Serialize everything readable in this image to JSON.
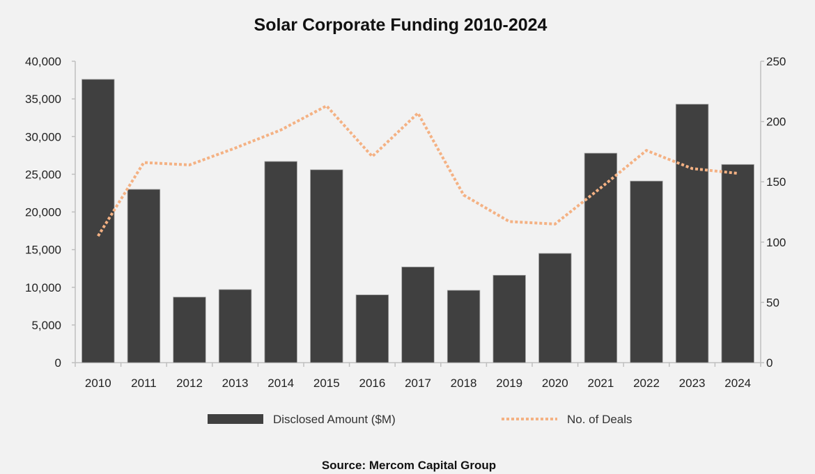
{
  "chart_data": {
    "type": "bar",
    "title": "Solar Corporate Funding 2010-2024",
    "source": "Source: Mercom Capital Group",
    "categories": [
      "2010",
      "2011",
      "2012",
      "2013",
      "2014",
      "2015",
      "2016",
      "2017",
      "2018",
      "2019",
      "2020",
      "2021",
      "2022",
      "2023",
      "2024"
    ],
    "series": [
      {
        "name": "Disclosed Amount ($M)",
        "type": "bar",
        "axis": "left",
        "color": "#404040",
        "values": [
          37600,
          23000,
          8700,
          9700,
          26700,
          25600,
          9000,
          12700,
          9600,
          11600,
          14500,
          27800,
          24100,
          34300,
          26300
        ]
      },
      {
        "name": "No. of Deals",
        "type": "line",
        "style": "dotted",
        "axis": "right",
        "color": "#f4b183",
        "values": [
          105,
          166,
          164,
          178,
          193,
          213,
          171,
          207,
          139,
          117,
          115,
          145,
          176,
          161,
          157
        ]
      }
    ],
    "y_left": {
      "range": [
        0,
        40000
      ],
      "ticks": [
        "0",
        "5,000",
        "10,000",
        "15,000",
        "20,000",
        "25,000",
        "30,000",
        "35,000",
        "40,000"
      ],
      "tick_values": [
        0,
        5000,
        10000,
        15000,
        20000,
        25000,
        30000,
        35000,
        40000
      ]
    },
    "y_right": {
      "range": [
        0,
        250
      ],
      "ticks": [
        "0",
        "50",
        "100",
        "150",
        "200",
        "250"
      ],
      "tick_values": [
        0,
        50,
        100,
        150,
        200,
        250
      ]
    },
    "grid": false,
    "legend": "bottom",
    "background": "#f2f2f2"
  }
}
